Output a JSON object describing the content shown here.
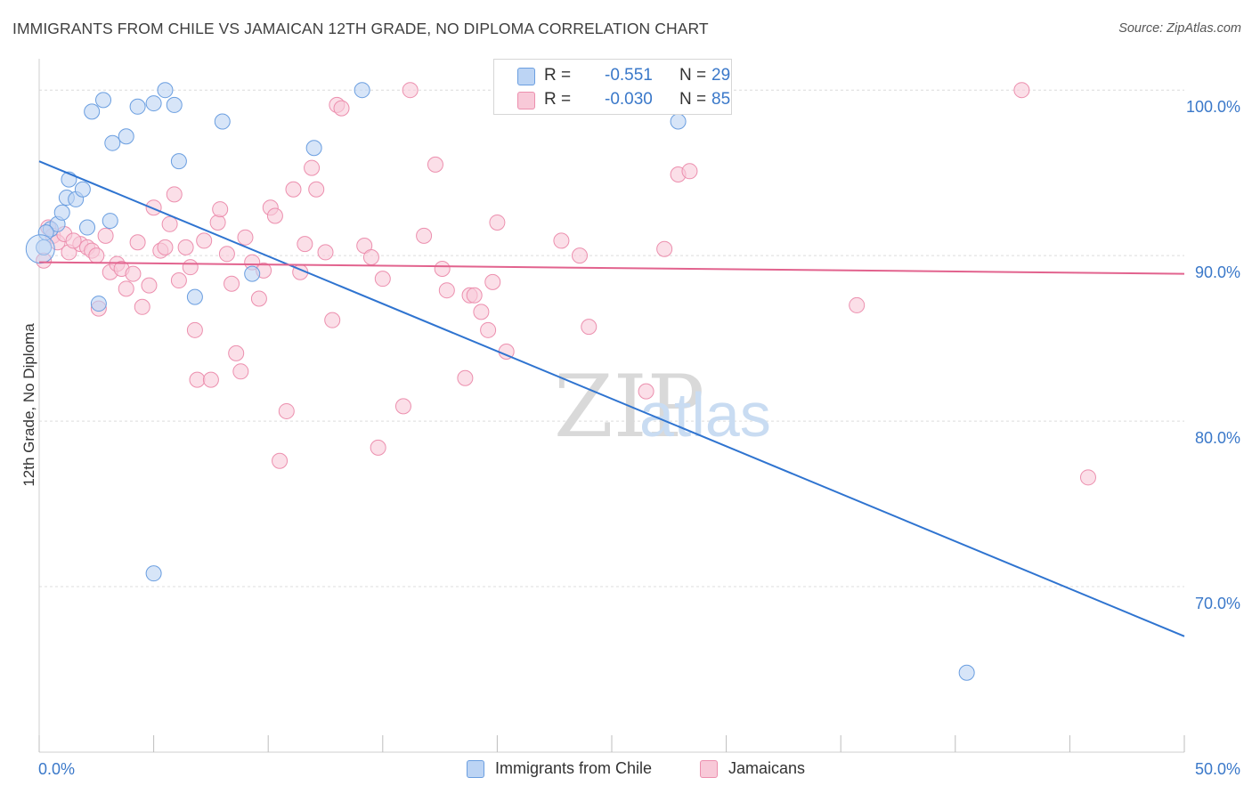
{
  "title": "IMMIGRANTS FROM CHILE VS JAMAICAN 12TH GRADE, NO DIPLOMA CORRELATION CHART",
  "source": "Source: ZipAtlas.com",
  "watermark": {
    "zip": "ZIP",
    "atlas": "atlas"
  },
  "legend_top": {
    "rows": [
      {
        "r_label": "R =",
        "r_value": "-0.551",
        "n_label": "N =",
        "n_value": "29"
      },
      {
        "r_label": "R =",
        "r_value": "-0.030",
        "n_label": "N =",
        "n_value": "85"
      }
    ]
  },
  "legend_bottom": {
    "items": [
      "Immigrants from Chile",
      "Jamaicans"
    ]
  },
  "colors": {
    "blue_fill": "#bcd4f4",
    "blue_stroke": "#6a9ee0",
    "blue_line": "#2f74d0",
    "pink_fill": "#f8c9d8",
    "pink_stroke": "#ec8fae",
    "pink_line": "#e2638e",
    "tick_text": "#3a78c9",
    "grid": "#dcdcdc"
  },
  "chart_data": {
    "type": "scatter",
    "title": "IMMIGRANTS FROM CHILE VS JAMAICAN 12TH GRADE, NO DIPLOMA CORRELATION CHART",
    "ylabel": "12th Grade, No Diploma",
    "xlabel": "",
    "xlim": [
      0,
      50
    ],
    "ylim": [
      60,
      102
    ],
    "x_tick_labels": [
      "0.0%",
      "50.0%"
    ],
    "y_ticks": [
      70,
      80,
      90,
      100
    ],
    "y_tick_labels": [
      "70.0%",
      "80.0%",
      "90.0%",
      "100.0%"
    ],
    "grid": true,
    "legend": "top-center",
    "series": [
      {
        "name": "Immigrants from Chile",
        "r": -0.551,
        "n": 29,
        "trend": {
          "x": [
            0,
            50
          ],
          "y": [
            95.7,
            67.0
          ]
        },
        "points": [
          [
            0.2,
            90.5
          ],
          [
            0.5,
            91.6
          ],
          [
            0.8,
            91.9
          ],
          [
            1.0,
            92.6
          ],
          [
            1.2,
            93.5
          ],
          [
            1.3,
            94.6
          ],
          [
            1.6,
            93.4
          ],
          [
            1.9,
            94.0
          ],
          [
            2.1,
            91.7
          ],
          [
            2.3,
            98.7
          ],
          [
            2.8,
            99.4
          ],
          [
            3.1,
            92.1
          ],
          [
            2.6,
            87.1
          ],
          [
            3.2,
            96.8
          ],
          [
            3.8,
            97.2
          ],
          [
            4.3,
            99.0
          ],
          [
            5.0,
            99.2
          ],
          [
            5.5,
            100.0
          ],
          [
            5.9,
            99.1
          ],
          [
            6.1,
            95.7
          ],
          [
            6.8,
            87.5
          ],
          [
            8.0,
            98.1
          ],
          [
            9.3,
            88.9
          ],
          [
            12.0,
            96.5
          ],
          [
            14.1,
            100.0
          ],
          [
            5.0,
            70.8
          ],
          [
            27.9,
            98.1
          ],
          [
            40.5,
            64.8
          ],
          [
            0.3,
            91.4
          ]
        ]
      },
      {
        "name": "Jamaicans",
        "r": -0.03,
        "n": 85,
        "trend": {
          "x": [
            0,
            50
          ],
          "y": [
            89.6,
            88.9
          ]
        },
        "points": [
          [
            0.4,
            91.7
          ],
          [
            0.6,
            91.2
          ],
          [
            0.8,
            90.8
          ],
          [
            1.1,
            91.3
          ],
          [
            1.3,
            90.2
          ],
          [
            1.8,
            90.7
          ],
          [
            2.1,
            90.5
          ],
          [
            2.3,
            90.3
          ],
          [
            2.5,
            90.0
          ],
          [
            2.6,
            86.8
          ],
          [
            2.9,
            91.2
          ],
          [
            3.1,
            89.0
          ],
          [
            3.4,
            89.5
          ],
          [
            3.6,
            89.2
          ],
          [
            3.8,
            88.0
          ],
          [
            4.1,
            88.9
          ],
          [
            4.3,
            90.8
          ],
          [
            4.5,
            86.9
          ],
          [
            4.8,
            88.2
          ],
          [
            5.0,
            92.9
          ],
          [
            5.3,
            90.3
          ],
          [
            5.5,
            90.5
          ],
          [
            5.7,
            91.9
          ],
          [
            5.9,
            93.7
          ],
          [
            6.1,
            88.5
          ],
          [
            6.4,
            90.5
          ],
          [
            6.6,
            89.3
          ],
          [
            6.8,
            85.5
          ],
          [
            6.9,
            82.5
          ],
          [
            7.2,
            90.9
          ],
          [
            7.5,
            82.5
          ],
          [
            7.8,
            92.0
          ],
          [
            7.9,
            92.8
          ],
          [
            8.2,
            90.1
          ],
          [
            8.4,
            88.3
          ],
          [
            8.6,
            84.1
          ],
          [
            8.8,
            83.0
          ],
          [
            9.0,
            91.1
          ],
          [
            9.3,
            89.6
          ],
          [
            9.6,
            87.4
          ],
          [
            9.8,
            89.1
          ],
          [
            10.1,
            92.9
          ],
          [
            10.3,
            92.4
          ],
          [
            10.8,
            80.6
          ],
          [
            11.1,
            94.0
          ],
          [
            11.4,
            89.0
          ],
          [
            11.6,
            90.7
          ],
          [
            11.9,
            95.3
          ],
          [
            12.1,
            94.0
          ],
          [
            12.5,
            90.2
          ],
          [
            12.8,
            86.1
          ],
          [
            13.0,
            99.1
          ],
          [
            13.2,
            98.9
          ],
          [
            10.5,
            77.6
          ],
          [
            14.2,
            90.6
          ],
          [
            14.5,
            89.9
          ],
          [
            14.8,
            78.4
          ],
          [
            15.0,
            88.6
          ],
          [
            15.9,
            80.9
          ],
          [
            16.2,
            100.0
          ],
          [
            16.8,
            91.2
          ],
          [
            17.3,
            95.5
          ],
          [
            17.6,
            89.2
          ],
          [
            17.8,
            87.9
          ],
          [
            18.6,
            82.6
          ],
          [
            18.8,
            87.6
          ],
          [
            19.0,
            87.6
          ],
          [
            19.3,
            86.6
          ],
          [
            19.6,
            85.5
          ],
          [
            19.8,
            88.4
          ],
          [
            20.0,
            92.0
          ],
          [
            20.4,
            84.2
          ],
          [
            22.8,
            90.9
          ],
          [
            23.6,
            90.0
          ],
          [
            24.0,
            85.7
          ],
          [
            26.5,
            81.8
          ],
          [
            27.3,
            90.4
          ],
          [
            27.8,
            100.0
          ],
          [
            27.9,
            94.9
          ],
          [
            28.4,
            95.1
          ],
          [
            35.7,
            87.0
          ],
          [
            42.9,
            100.0
          ],
          [
            45.8,
            76.6
          ],
          [
            0.2,
            89.7
          ],
          [
            1.5,
            90.9
          ]
        ]
      }
    ]
  }
}
